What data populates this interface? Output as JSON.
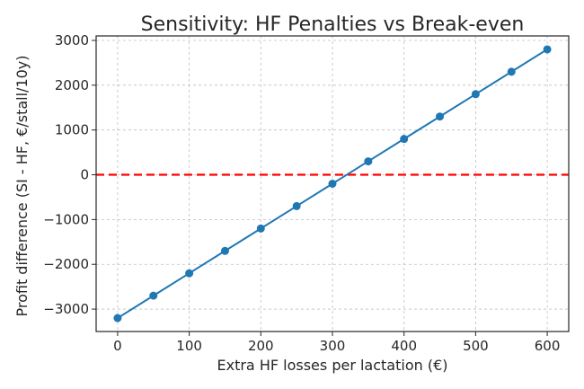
{
  "chart_data": {
    "type": "line",
    "title": "Sensitivity: HF Penalties vs Break-even",
    "xlabel": "Extra HF losses per lactation (€)",
    "ylabel": "Profit difference (SI - HF, €/stall/10y)",
    "xlim": [
      -30,
      630
    ],
    "ylim": [
      -3500,
      3100
    ],
    "x_ticks": [
      0,
      100,
      200,
      300,
      400,
      500,
      600
    ],
    "y_ticks": [
      -3000,
      -2000,
      -1000,
      0,
      1000,
      2000,
      3000
    ],
    "y_tick_labels": [
      "−3000",
      "−2000",
      "−1000",
      "0",
      "1000",
      "2000",
      "3000"
    ],
    "grid": true,
    "series": [
      {
        "x": [
          0,
          50,
          100,
          150,
          200,
          250,
          300,
          350,
          400,
          450,
          500,
          550,
          600
        ],
        "y": [
          -3200,
          -2700,
          -2200,
          -1700,
          -1200,
          -700,
          -200,
          300,
          800,
          1300,
          1800,
          2300,
          2800
        ],
        "color": "#1f77b4",
        "marker": "circle"
      }
    ],
    "reference_line": {
      "y": 0,
      "color": "#ff0000",
      "style": "dashed"
    }
  }
}
